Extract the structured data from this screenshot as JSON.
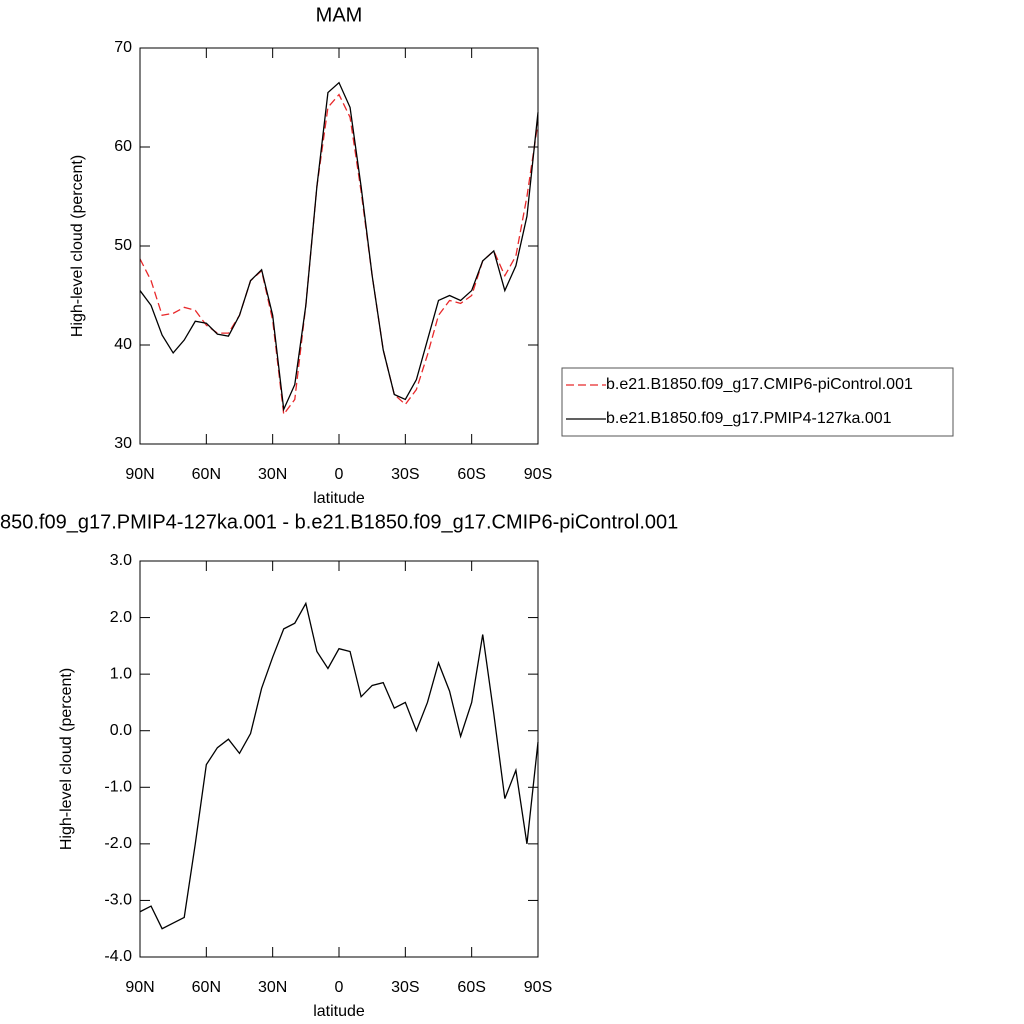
{
  "chart_data": [
    {
      "type": "line",
      "title": "MAM",
      "xlabel": "latitude",
      "ylabel": "High-level cloud (percent)",
      "x": [
        90,
        85,
        80,
        75,
        70,
        65,
        60,
        55,
        50,
        45,
        40,
        35,
        30,
        25,
        20,
        15,
        10,
        5,
        0,
        -5,
        -10,
        -15,
        -20,
        -25,
        -30,
        -35,
        -40,
        -45,
        -50,
        -55,
        -60,
        -65,
        -70,
        -75,
        -80,
        -85,
        -90
      ],
      "xlim": [
        90,
        -90
      ],
      "xticks": [
        {
          "value": 90,
          "label": "90N"
        },
        {
          "value": 60,
          "label": "60N"
        },
        {
          "value": 30,
          "label": "30N"
        },
        0,
        {
          "value": -30,
          "label": "30S"
        },
        {
          "value": -60,
          "label": "60S"
        },
        {
          "value": -90,
          "label": "90S"
        }
      ],
      "ylim": [
        30,
        70
      ],
      "yticks": [
        30,
        40,
        50,
        60,
        70
      ],
      "series": [
        {
          "name": "b.e21.B1850.f09_g17.CMIP6-piControl.001",
          "color": "#e8292b",
          "dash": true,
          "values": [
            48.7,
            46.5,
            43,
            43.2,
            43.8,
            43.5,
            42,
            41.2,
            41.2,
            43,
            46.5,
            47.5,
            42.5,
            33,
            34.5,
            44,
            56,
            64,
            65.3,
            63,
            55.5,
            47,
            39.5,
            35,
            34,
            35.5,
            39,
            43,
            44.5,
            44.2,
            45,
            48.5,
            49.5,
            47,
            49,
            55,
            62.5
          ]
        },
        {
          "name": "b.e21.B1850.f09_g17.PMIP4-127ka.001",
          "color": "#000000",
          "dash": false,
          "values": [
            45.5,
            44,
            41,
            39.2,
            40.5,
            42.4,
            42.2,
            41.1,
            40.9,
            43,
            46.5,
            47.6,
            43,
            33.5,
            36,
            44,
            56,
            65.5,
            66.5,
            64,
            56,
            47,
            39.5,
            35,
            34.5,
            36.5,
            40.5,
            44.5,
            45,
            44.5,
            45.5,
            48.5,
            49.5,
            45.5,
            48,
            53,
            63.5
          ]
        }
      ]
    },
    {
      "type": "line",
      "title": "850.f09_g17.PMIP4-127ka.001 - b.e21.B1850.f09_g17.CMIP6-piControl.001",
      "xlabel": "latitude",
      "ylabel": "High-level cloud (percent)",
      "x": [
        90,
        85,
        80,
        75,
        70,
        65,
        60,
        55,
        50,
        45,
        40,
        35,
        30,
        25,
        20,
        15,
        10,
        5,
        0,
        -5,
        -10,
        -15,
        -20,
        -25,
        -30,
        -35,
        -40,
        -45,
        -50,
        -55,
        -60,
        -65,
        -70,
        -75,
        -80,
        -85,
        -90
      ],
      "xlim": [
        90,
        -90
      ],
      "xticks": [
        {
          "value": 90,
          "label": "90N"
        },
        {
          "value": 60,
          "label": "60N"
        },
        {
          "value": 30,
          "label": "30N"
        },
        0,
        {
          "value": -30,
          "label": "30S"
        },
        {
          "value": -60,
          "label": "60S"
        },
        {
          "value": -90,
          "label": "90S"
        }
      ],
      "ylim": [
        -4,
        3
      ],
      "yticks": [
        {
          "value": -4,
          "label": "-4.0"
        },
        {
          "value": -3,
          "label": "-3.0"
        },
        {
          "value": -2,
          "label": "-2.0"
        },
        {
          "value": -1,
          "label": "-1.0"
        },
        {
          "value": 0,
          "label": "0.0"
        },
        {
          "value": 1,
          "label": "1.0"
        },
        {
          "value": 2,
          "label": "2.0"
        },
        {
          "value": 3,
          "label": "3.0"
        }
      ],
      "series": [
        {
          "color": "#000000",
          "dash": false,
          "values": [
            -3.2,
            -3.1,
            -3.5,
            -3.4,
            -3.3,
            -2.0,
            -0.6,
            -0.3,
            -0.15,
            -0.4,
            -0.05,
            0.75,
            1.3,
            1.8,
            1.9,
            2.25,
            1.4,
            1.1,
            1.45,
            1.4,
            0.6,
            0.8,
            0.85,
            0.4,
            0.5,
            0.0,
            0.5,
            1.2,
            0.7,
            -0.1,
            0.5,
            1.7,
            0.3,
            -1.2,
            -0.7,
            -2.0,
            -0.2
          ]
        }
      ]
    }
  ]
}
